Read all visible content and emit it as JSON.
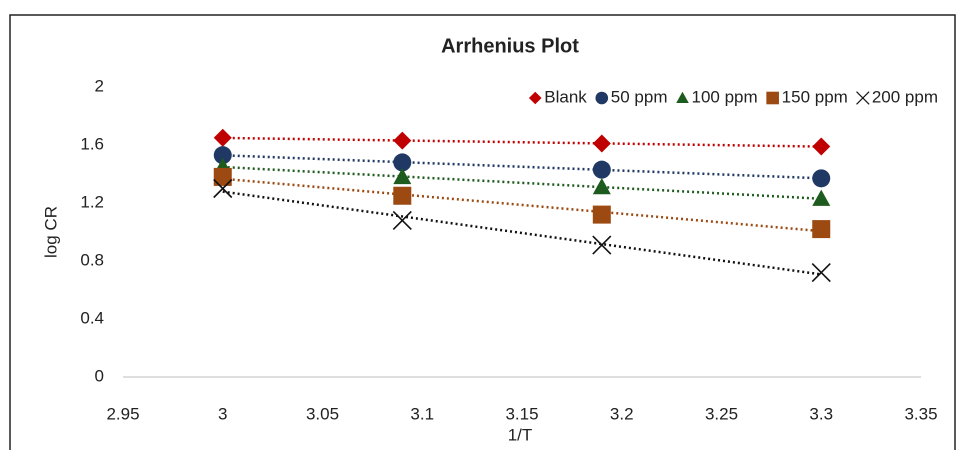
{
  "chart_data": {
    "type": "scatter",
    "title": "Arrhenius Plot",
    "x_label": "1/T",
    "y_label": "log CR",
    "x": [
      3.0,
      3.09,
      3.19,
      3.3
    ],
    "series": [
      {
        "name": "Blank",
        "color": "#c00000",
        "marker": "diamond",
        "values": [
          1.65,
          1.63,
          1.61,
          1.59
        ]
      },
      {
        "name": "50 ppm",
        "color": "#1f3864",
        "marker": "circle",
        "values": [
          1.53,
          1.48,
          1.43,
          1.37
        ]
      },
      {
        "name": "100 ppm",
        "color": "#1e5b1e",
        "marker": "triangle",
        "values": [
          1.45,
          1.38,
          1.31,
          1.23
        ]
      },
      {
        "name": "150 ppm",
        "color": "#9c4a12",
        "marker": "square",
        "values": [
          1.38,
          1.25,
          1.12,
          1.02
        ]
      },
      {
        "name": "200 ppm",
        "color": "#111111",
        "marker": "x",
        "values": [
          1.3,
          1.08,
          0.91,
          0.72
        ]
      }
    ],
    "xlim": [
      2.95,
      3.35
    ],
    "xticks": [
      2.95,
      3,
      3.05,
      3.1,
      3.15,
      3.2,
      3.25,
      3.3,
      3.35
    ],
    "ylim": [
      0,
      2
    ],
    "yticks": [
      0,
      0.4,
      0.8,
      1.2,
      1.6,
      2
    ],
    "trendline": true,
    "legend": "top-right"
  }
}
